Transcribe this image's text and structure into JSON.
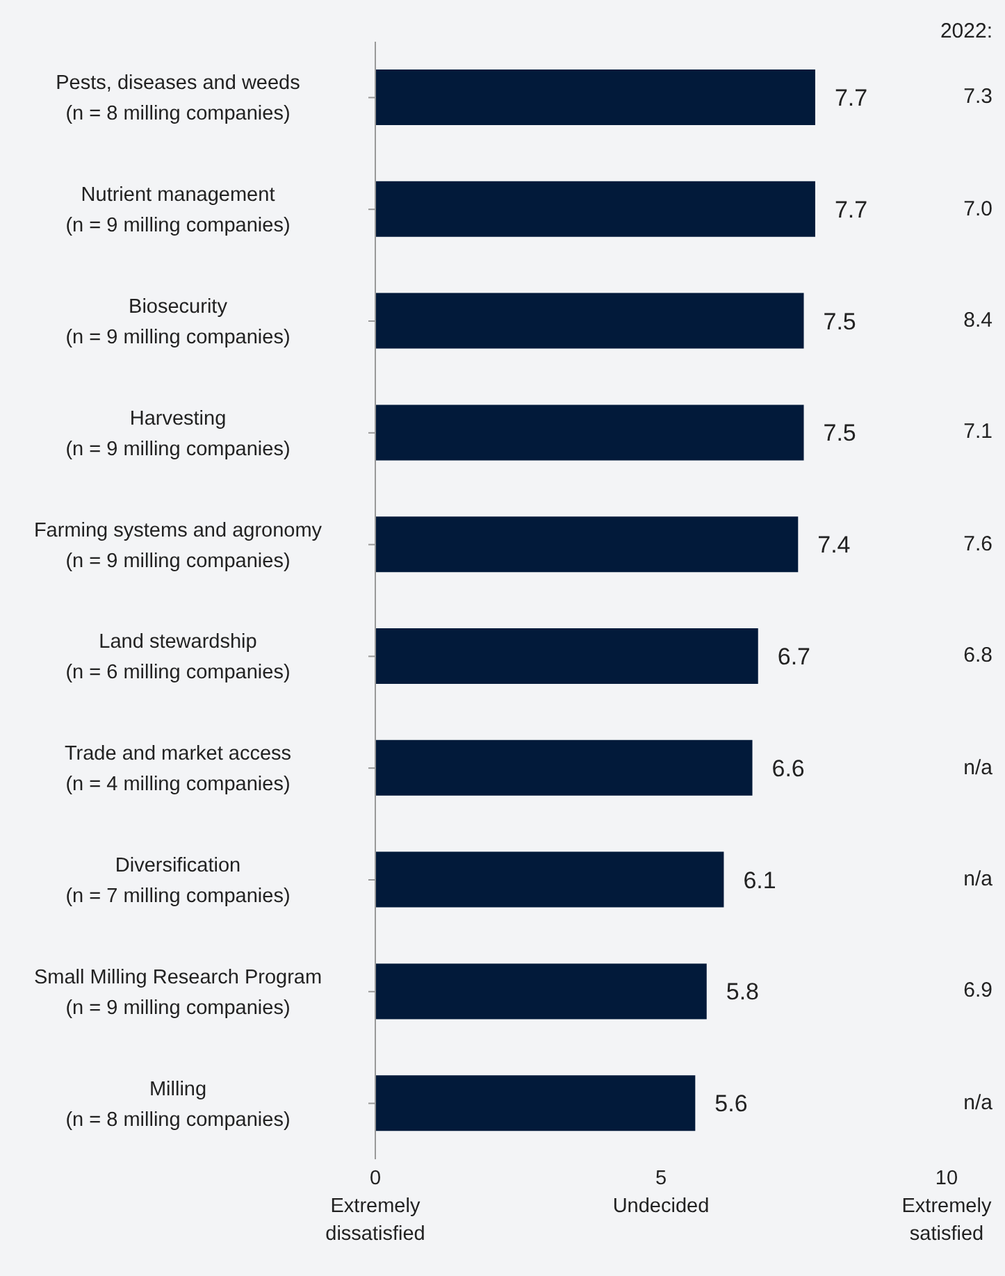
{
  "chart_data": {
    "type": "bar",
    "orientation": "horizontal",
    "categories": [
      "Pests, diseases and weeds\n(n = 8 milling companies)",
      "Nutrient management\n(n = 9 milling companies)",
      "Biosecurity\n(n = 9 milling companies)",
      "Harvesting\n(n = 9 milling companies)",
      "Farming systems and agronomy\n(n = 9 milling companies)",
      "Land stewardship\n(n = 6 milling companies)",
      "Trade and market access\n(n = 4 milling companies)",
      "Diversification\n(n = 7 milling companies)",
      "Small Milling Research Program\n(n = 9 milling companies)",
      "Milling\n(n = 8 milling companies)"
    ],
    "values": [
      7.7,
      7.7,
      7.5,
      7.5,
      7.4,
      6.7,
      6.6,
      6.1,
      5.8,
      5.6
    ],
    "color": "#021a3a",
    "xlim": [
      0,
      10
    ],
    "xticks": [
      {
        "value": 0,
        "label": "0\nExtremely\ndissatisfied"
      },
      {
        "value": 5,
        "label": "5\nUndecided"
      },
      {
        "value": 10,
        "label": "10\nExtremely\nsatisfied"
      }
    ],
    "data_labels": true,
    "grid": false,
    "legend": false,
    "annotations": [
      "2022:",
      "7.3",
      "7.0",
      "8.4",
      "7.1",
      "7.6",
      "6.8",
      "n/a",
      "n/a",
      "6.9",
      "n/a"
    ]
  }
}
